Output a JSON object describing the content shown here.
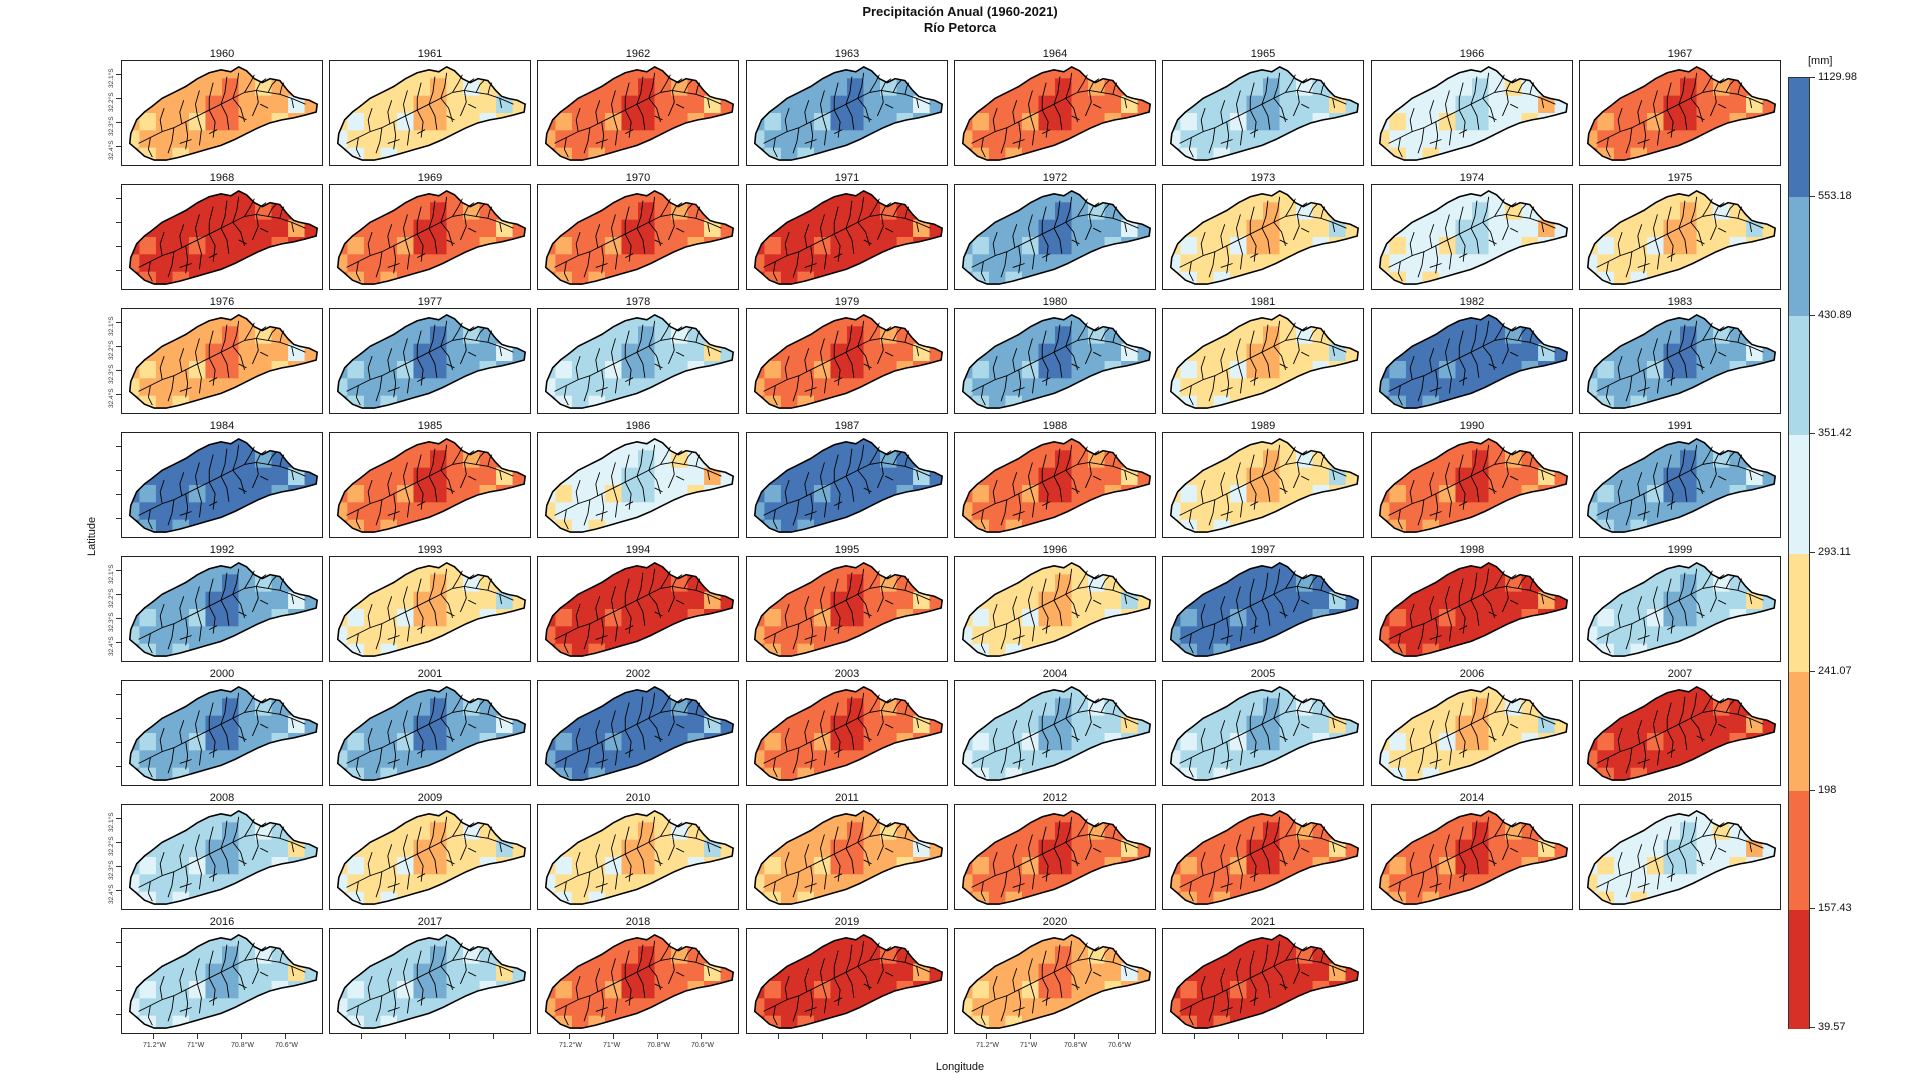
{
  "chart_data": {
    "type": "heatmap",
    "title": "Precipitación Anual (1960-2021)",
    "subtitle": "Río Petorca",
    "xlabel": "Longitude",
    "ylabel": "Latitude",
    "x_tick_labels": [
      "71.2°W",
      "71°W",
      "70.8°W",
      "70.6°W"
    ],
    "y_tick_labels": [
      "32.4°S",
      "32.3°S",
      "32.2°S",
      "32.1°S"
    ],
    "legend": {
      "unit": "[mm]",
      "breaks": [
        39.57,
        157.43,
        198,
        241.07,
        293.11,
        351.42,
        430.89,
        553.18,
        1129.98
      ],
      "colors": [
        "#d73027",
        "#f46d43",
        "#fdae61",
        "#fee090",
        "#e0f3f8",
        "#abd9e9",
        "#74add1",
        "#4575b4"
      ]
    },
    "panels": [
      {
        "year": "1960",
        "base": 2
      },
      {
        "year": "1961",
        "base": 3
      },
      {
        "year": "1962",
        "base": 1
      },
      {
        "year": "1963",
        "base": 6
      },
      {
        "year": "1964",
        "base": 1
      },
      {
        "year": "1965",
        "base": 5
      },
      {
        "year": "1966",
        "base": 4
      },
      {
        "year": "1967",
        "base": 1
      },
      {
        "year": "1968",
        "base": 0
      },
      {
        "year": "1969",
        "base": 1
      },
      {
        "year": "1970",
        "base": 1
      },
      {
        "year": "1971",
        "base": 0
      },
      {
        "year": "1972",
        "base": 6
      },
      {
        "year": "1973",
        "base": 3
      },
      {
        "year": "1974",
        "base": 4
      },
      {
        "year": "1975",
        "base": 3
      },
      {
        "year": "1976",
        "base": 2
      },
      {
        "year": "1977",
        "base": 6
      },
      {
        "year": "1978",
        "base": 5
      },
      {
        "year": "1979",
        "base": 1
      },
      {
        "year": "1980",
        "base": 6
      },
      {
        "year": "1981",
        "base": 3
      },
      {
        "year": "1982",
        "base": 7
      },
      {
        "year": "1983",
        "base": 6
      },
      {
        "year": "1984",
        "base": 7
      },
      {
        "year": "1985",
        "base": 1
      },
      {
        "year": "1986",
        "base": 4
      },
      {
        "year": "1987",
        "base": 7
      },
      {
        "year": "1988",
        "base": 1
      },
      {
        "year": "1989",
        "base": 3
      },
      {
        "year": "1990",
        "base": 1
      },
      {
        "year": "1991",
        "base": 6
      },
      {
        "year": "1992",
        "base": 6
      },
      {
        "year": "1993",
        "base": 3
      },
      {
        "year": "1994",
        "base": 0
      },
      {
        "year": "1995",
        "base": 1
      },
      {
        "year": "1996",
        "base": 3
      },
      {
        "year": "1997",
        "base": 7
      },
      {
        "year": "1998",
        "base": 0
      },
      {
        "year": "1999",
        "base": 5
      },
      {
        "year": "2000",
        "base": 6
      },
      {
        "year": "2001",
        "base": 6
      },
      {
        "year": "2002",
        "base": 7
      },
      {
        "year": "2003",
        "base": 1
      },
      {
        "year": "2004",
        "base": 5
      },
      {
        "year": "2005",
        "base": 5
      },
      {
        "year": "2006",
        "base": 3
      },
      {
        "year": "2007",
        "base": 0
      },
      {
        "year": "2008",
        "base": 5
      },
      {
        "year": "2009",
        "base": 3
      },
      {
        "year": "2010",
        "base": 3
      },
      {
        "year": "2011",
        "base": 2
      },
      {
        "year": "2012",
        "base": 1
      },
      {
        "year": "2013",
        "base": 1
      },
      {
        "year": "2014",
        "base": 1
      },
      {
        "year": "2015",
        "base": 4
      },
      {
        "year": "2016",
        "base": 5
      },
      {
        "year": "2017",
        "base": 5
      },
      {
        "year": "2018",
        "base": 1
      },
      {
        "year": "2019",
        "base": 0
      },
      {
        "year": "2020",
        "base": 2
      },
      {
        "year": "2021",
        "base": 0
      }
    ]
  }
}
